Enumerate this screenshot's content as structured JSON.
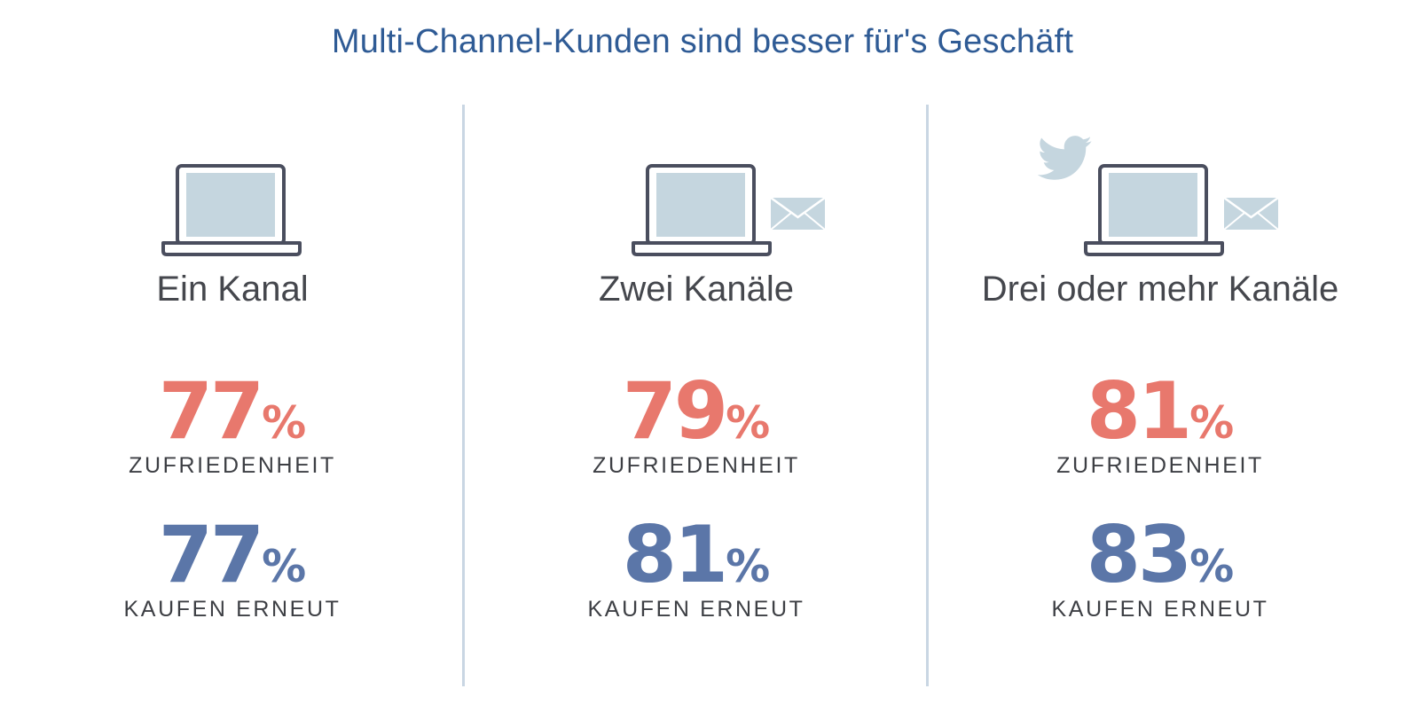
{
  "title": "Multi-Channel-Kunden sind besser für's Geschäft",
  "colors": {
    "title": "#2f5b95",
    "satisfaction": "#e8786d",
    "repurchase": "#5b76a8",
    "divider": "#c9d6e3",
    "icon_fill": "#c5d6df",
    "icon_stroke": "#4a4e5e"
  },
  "icons": [
    "laptop-icon",
    "envelope-icon",
    "twitter-bird-icon"
  ],
  "columns": [
    {
      "label": "Ein Kanal",
      "satisfaction": {
        "value": "77",
        "unit": "%",
        "label": "ZUFRIEDENHEIT"
      },
      "repurchase": {
        "value": "77",
        "unit": "%",
        "label": "KAUFEN ERNEUT"
      }
    },
    {
      "label": "Zwei Kanäle",
      "satisfaction": {
        "value": "79",
        "unit": "%",
        "label": "ZUFRIEDENHEIT"
      },
      "repurchase": {
        "value": "81",
        "unit": "%",
        "label": "KAUFEN ERNEUT"
      }
    },
    {
      "label": "Drei oder mehr Kanäle",
      "satisfaction": {
        "value": "81",
        "unit": "%",
        "label": "ZUFRIEDENHEIT"
      },
      "repurchase": {
        "value": "83",
        "unit": "%",
        "label": "KAUFEN ERNEUT"
      }
    }
  ],
  "chart_data": {
    "type": "table",
    "title": "Multi-Channel-Kunden sind besser für's Geschäft",
    "categories": [
      "Ein Kanal",
      "Zwei Kanäle",
      "Drei oder mehr Kanäle"
    ],
    "series": [
      {
        "name": "ZUFRIEDENHEIT",
        "values": [
          77,
          79,
          81
        ],
        "unit": "%"
      },
      {
        "name": "KAUFEN ERNEUT",
        "values": [
          77,
          81,
          83
        ],
        "unit": "%"
      }
    ]
  }
}
